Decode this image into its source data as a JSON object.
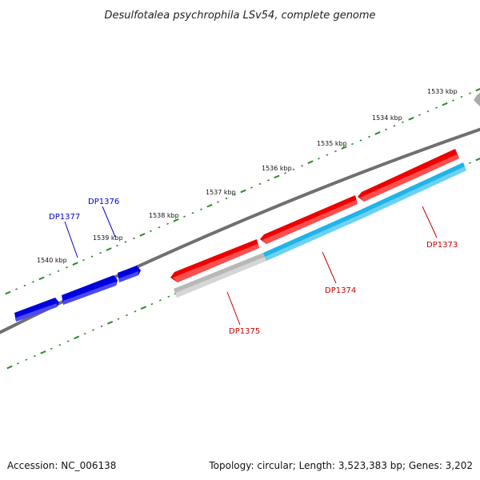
{
  "title": "Desulfotalea psychrophila LSv54, complete genome",
  "accession": "Accession: NC_006138",
  "summary": "Topology: circular; Length: 3,523,383 bp; Genes: 3,202",
  "colors": {
    "backbone": "#777777",
    "ticks": "#2a8a2a",
    "forward_gene": "#0000dd",
    "reverse_gene": "#ee0000",
    "cds_cyan": "#22bbee",
    "cds_grey": "#bbbbbb",
    "label_blue": "#0000cc",
    "label_red": "#cc0000"
  },
  "kbp_labels": [
    "1533 kbp",
    "1534 kbp",
    "1535 kbp",
    "1536 kbp",
    "1537 kbp",
    "1538 kbp",
    "1539 kbp",
    "1540 kbp"
  ],
  "genes": [
    {
      "label": "DP1373",
      "strand": "-"
    },
    {
      "label": "DP1374",
      "strand": "-"
    },
    {
      "label": "DP1375",
      "strand": "-"
    },
    {
      "label": "DP1376",
      "strand": "+"
    },
    {
      "label": "DP1377",
      "strand": "+"
    }
  ]
}
